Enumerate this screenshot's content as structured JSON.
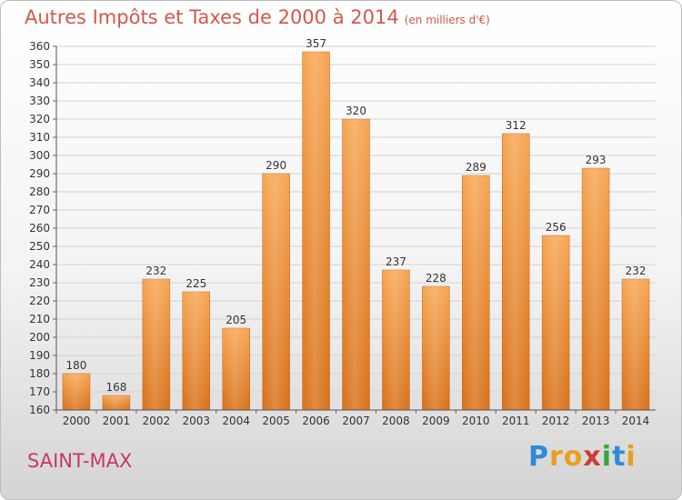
{
  "header": {
    "title": "Autres Impôts et Taxes de 2000 à 2014",
    "unit": "(en milliers d'€)"
  },
  "footer": {
    "city": "SAINT-MAX"
  },
  "logo": {
    "letters": [
      "P",
      "r",
      "o",
      "x",
      "i",
      "t",
      "i"
    ],
    "colors": [
      "#2e8bd6",
      "#e8a020",
      "#e8a020",
      "#d23a3a",
      "#3aa63a",
      "#2e8bd6",
      "#e8a020"
    ]
  },
  "chart_data": {
    "type": "bar",
    "title": "Autres Impôts et Taxes de 2000 à 2014",
    "subtitle": "(en milliers d'€)",
    "xlabel": "",
    "ylabel": "",
    "categories": [
      "2000",
      "2001",
      "2002",
      "2003",
      "2004",
      "2005",
      "2006",
      "2007",
      "2008",
      "2009",
      "2010",
      "2011",
      "2012",
      "2013",
      "2014"
    ],
    "values": [
      180,
      168,
      232,
      225,
      205,
      290,
      357,
      320,
      237,
      228,
      289,
      312,
      256,
      293,
      232
    ],
    "data_labels": [
      "180",
      "168",
      "232",
      "225",
      "205",
      "290",
      "357",
      "320",
      "237",
      "228",
      "289",
      "312",
      "256",
      "293",
      "232"
    ],
    "y_ticks": [
      "160",
      "170",
      "180",
      "190",
      "200",
      "210",
      "220",
      "230",
      "240",
      "250",
      "260",
      "270",
      "280",
      "290",
      "300",
      "310",
      "320",
      "330",
      "340",
      "350",
      "360"
    ],
    "ylim": [
      160,
      360
    ],
    "grid": true,
    "legend": "none",
    "bar_color": "#f0923a"
  }
}
